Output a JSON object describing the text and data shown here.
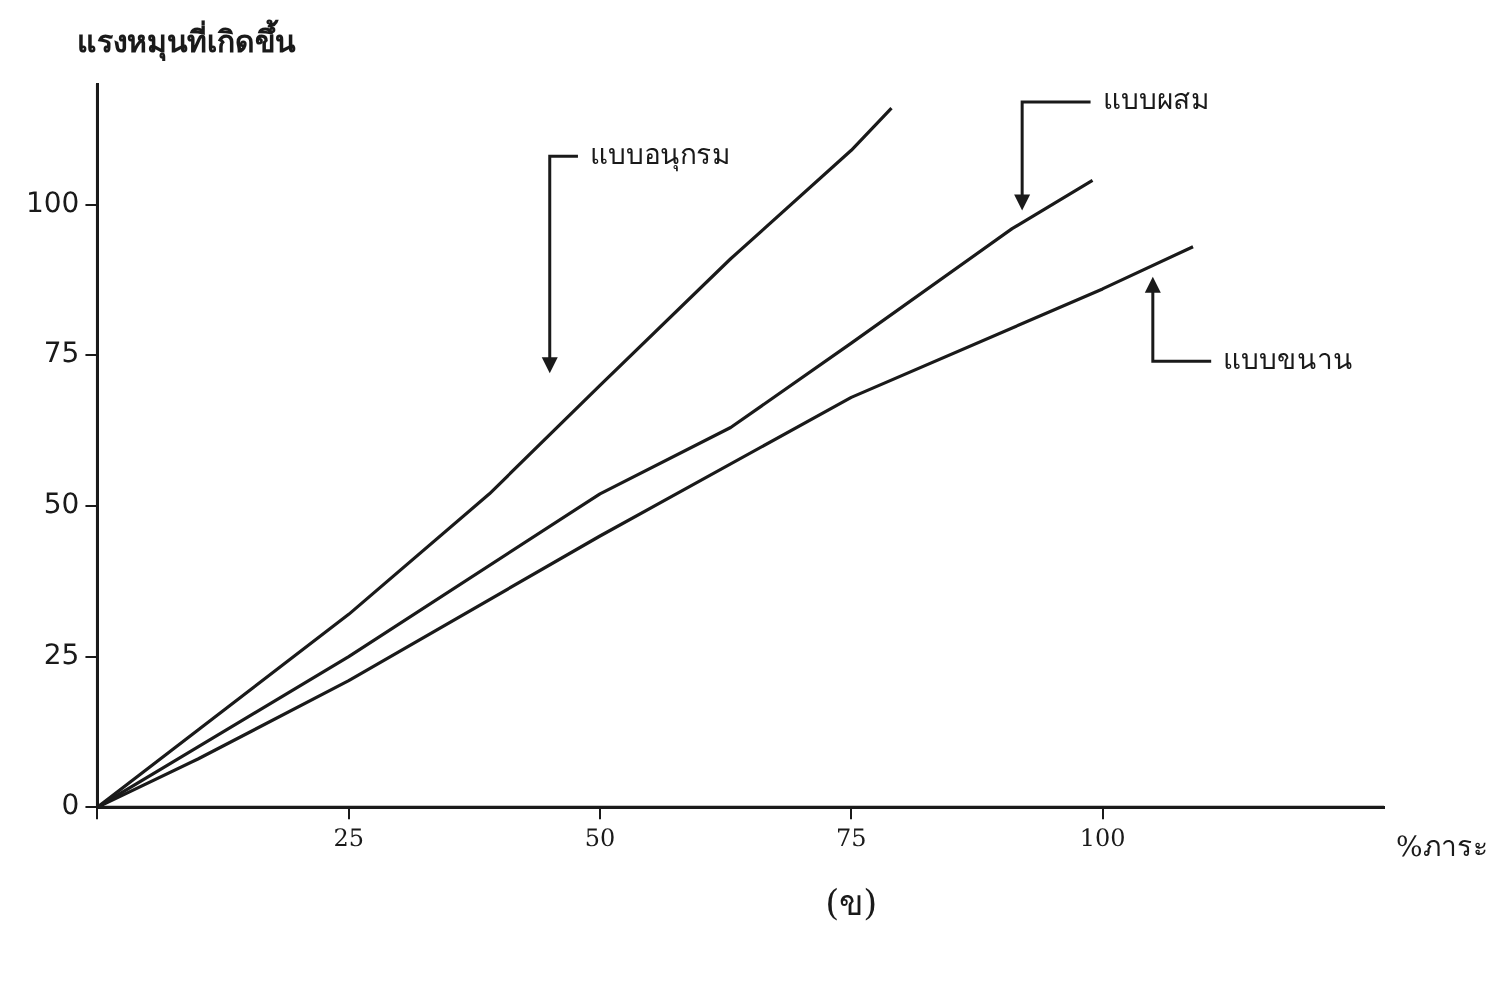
{
  "chart_data": {
    "type": "line",
    "xlabel": "%ภาระ",
    "ylabel": "แรงหมุนที่เกิดขึ้น",
    "annotations": [
      "(ข)"
    ],
    "xlim": [
      0,
      128
    ],
    "ylim": [
      0,
      120
    ],
    "xticks": [
      {
        "value": 0,
        "label": null
      },
      25,
      50,
      75,
      100
    ],
    "yticks": [
      0,
      25,
      50,
      75,
      100
    ],
    "grid": false,
    "legend": false,
    "marker": "none",
    "line_style": "solid",
    "series": [
      {
        "name": "แบบอนุกรม",
        "color": "#1a1a1a",
        "x": [
          0,
          25,
          39,
          50,
          63,
          75,
          79
        ],
        "values": [
          0,
          32,
          52,
          70,
          91,
          109,
          116
        ]
      },
      {
        "name": "แบบผสม",
        "color": "#1a1a1a",
        "x": [
          0,
          25,
          50,
          63,
          75,
          91,
          99
        ],
        "values": [
          0,
          25,
          52,
          63,
          77,
          96,
          104
        ]
      },
      {
        "name": "แบบขนาน",
        "color": "#1a1a1a",
        "x": [
          0,
          10,
          25,
          50,
          75,
          100,
          109
        ],
        "values": [
          0,
          8,
          21,
          45,
          68,
          86,
          93
        ]
      }
    ]
  }
}
